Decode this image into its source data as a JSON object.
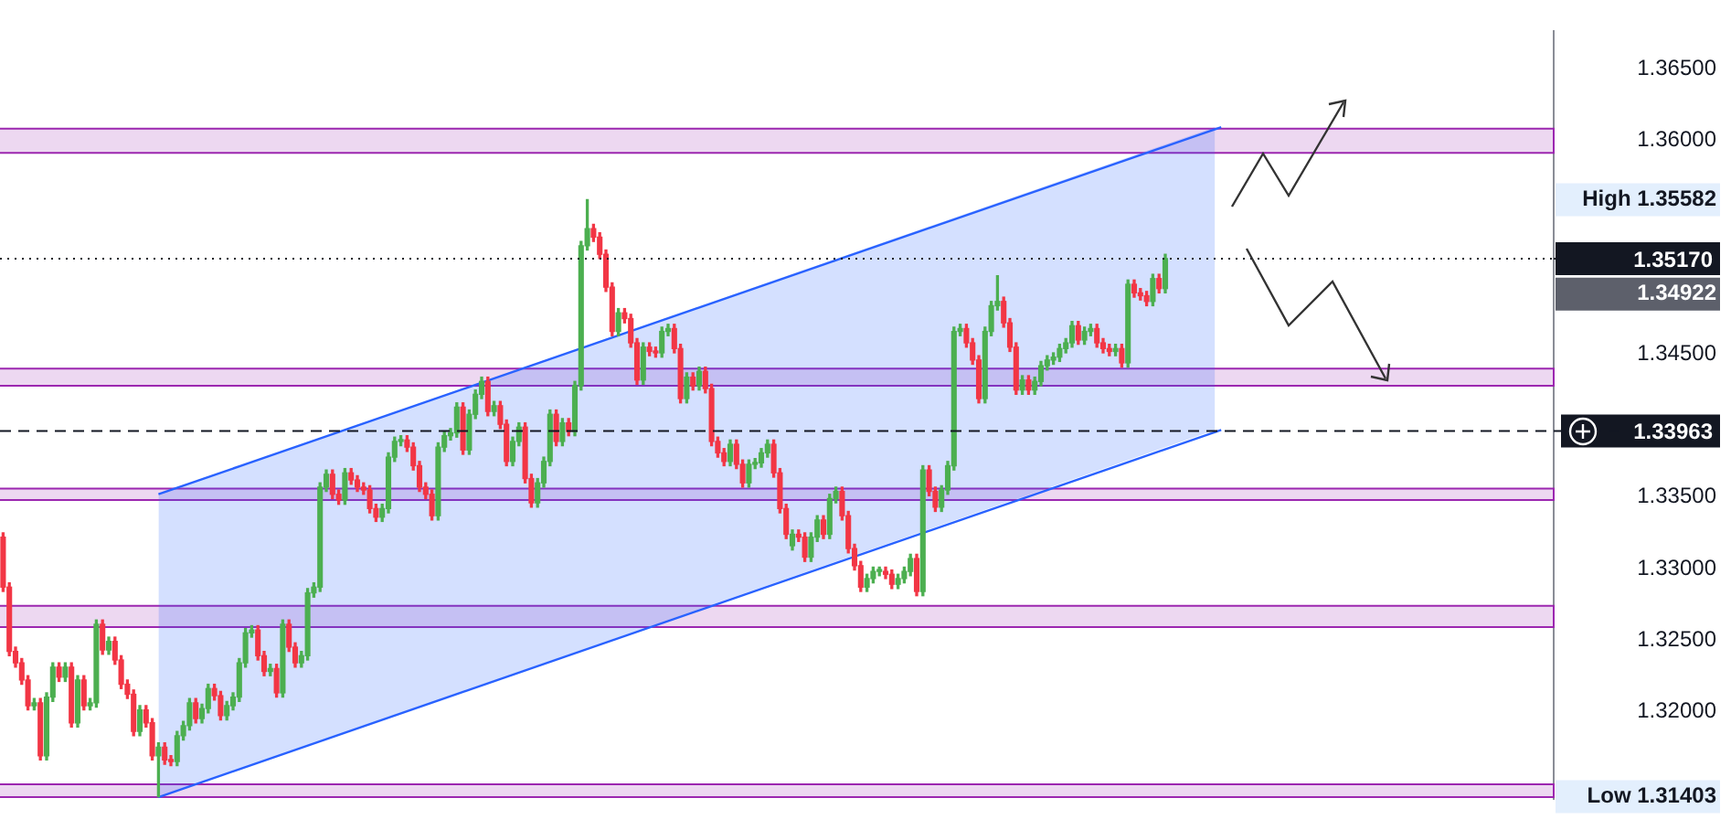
{
  "chart_data": {
    "type": "candlestick",
    "categories": [
      null,
      null,
      null,
      null,
      null,
      null,
      null,
      null,
      null,
      null,
      null,
      null,
      null,
      null,
      null,
      null,
      null,
      null,
      null,
      null,
      null,
      null,
      null,
      null,
      null,
      null,
      null,
      null,
      null,
      null,
      null,
      null,
      null,
      null,
      null,
      null,
      null,
      null,
      null,
      null,
      null,
      null,
      null,
      null,
      null,
      null,
      null,
      null,
      null,
      null,
      null,
      null,
      null,
      null,
      null,
      null,
      null,
      null,
      null,
      null,
      null,
      null,
      null,
      null,
      null,
      null,
      null,
      null,
      null,
      null,
      null,
      null,
      null,
      null,
      null,
      null,
      null,
      null,
      null,
      null,
      null,
      null,
      null,
      null,
      null,
      null,
      null,
      null,
      null,
      null,
      null,
      null,
      null,
      null,
      null,
      null,
      null,
      null,
      null,
      null,
      null,
      null,
      null,
      null,
      null,
      null,
      null,
      null,
      null,
      null,
      null,
      null,
      null,
      null,
      null,
      null,
      null,
      null,
      null,
      null,
      null,
      null,
      null,
      null,
      null,
      null,
      null,
      null,
      null,
      null,
      null,
      null,
      null,
      null,
      null,
      null,
      null,
      null,
      null,
      null,
      null,
      null,
      null,
      null,
      null,
      null,
      null,
      null,
      null,
      null,
      null,
      null,
      null,
      null,
      null,
      null,
      null,
      null,
      null,
      null,
      null,
      null,
      null,
      null,
      null,
      null,
      null,
      null,
      null,
      null,
      null,
      null,
      null,
      null,
      null,
      null,
      null,
      null,
      null,
      null,
      null,
      null,
      null,
      null,
      null,
      null,
      null,
      null,
      null,
      null,
      null,
      null,
      null,
      null,
      null,
      null,
      null,
      null,
      null,
      null,
      null,
      null,
      null,
      null,
      null,
      null,
      null,
      null,
      null,
      null,
      null,
      null,
      null,
      null,
      null,
      null,
      null,
      null,
      null,
      null,
      null,
      null,
      null,
      null,
      null,
      null,
      null,
      null,
      null,
      null,
      null,
      null,
      null,
      null,
      null,
      null,
      null,
      null,
      null,
      null,
      null,
      null,
      null,
      null,
      null,
      null,
      null,
      null,
      null,
      null
    ],
    "ohlc": [
      [
        1.3322,
        1.3325,
        1.3284,
        1.3287
      ],
      [
        1.3287,
        1.329,
        1.3239,
        1.3242
      ],
      [
        1.3242,
        1.3245,
        1.3231,
        1.3234
      ],
      [
        1.3234,
        1.3237,
        1.3219,
        1.3222
      ],
      [
        1.3222,
        1.3225,
        1.3201,
        1.3204
      ],
      [
        1.3204,
        1.3209,
        1.3201,
        1.3206
      ],
      [
        1.3206,
        1.3209,
        1.3166,
        1.3169
      ],
      [
        1.3169,
        1.3213,
        1.3166,
        1.321
      ],
      [
        1.321,
        1.3234,
        1.3207,
        1.3231
      ],
      [
        1.3231,
        1.3234,
        1.3221,
        1.3224
      ],
      [
        1.3224,
        1.3234,
        1.3221,
        1.3231
      ],
      [
        1.3231,
        1.3234,
        1.3189,
        1.3192
      ],
      [
        1.3192,
        1.3225,
        1.3189,
        1.3222
      ],
      [
        1.3222,
        1.3225,
        1.3201,
        1.3204
      ],
      [
        1.3204,
        1.3209,
        1.3201,
        1.3206
      ],
      [
        1.3206,
        1.3264,
        1.3203,
        1.3261
      ],
      [
        1.3261,
        1.3264,
        1.324,
        1.3243
      ],
      [
        1.3243,
        1.3252,
        1.324,
        1.3249
      ],
      [
        1.3249,
        1.3252,
        1.3233,
        1.3236
      ],
      [
        1.3236,
        1.3239,
        1.3216,
        1.3219
      ],
      [
        1.3219,
        1.3222,
        1.3209,
        1.3212
      ],
      [
        1.3212,
        1.3215,
        1.3183,
        1.3186
      ],
      [
        1.3186,
        1.3204,
        1.3183,
        1.3201
      ],
      [
        1.3201,
        1.3204,
        1.3189,
        1.3192
      ],
      [
        1.3192,
        1.3195,
        1.3166,
        1.3169
      ],
      [
        1.3169,
        1.3178,
        1.31403,
        1.3175
      ],
      [
        1.3175,
        1.3178,
        1.3163,
        1.3166
      ],
      [
        1.3166,
        1.3169,
        1.3162,
        1.3165
      ],
      [
        1.3165,
        1.3186,
        1.3162,
        1.3183
      ],
      [
        1.3183,
        1.3193,
        1.318,
        1.319
      ],
      [
        1.319,
        1.3209,
        1.3187,
        1.3206
      ],
      [
        1.3206,
        1.3209,
        1.3192,
        1.3195
      ],
      [
        1.3195,
        1.3205,
        1.3192,
        1.3202
      ],
      [
        1.3202,
        1.3219,
        1.3199,
        1.3216
      ],
      [
        1.3216,
        1.3219,
        1.3208,
        1.3211
      ],
      [
        1.3211,
        1.3214,
        1.3194,
        1.3197
      ],
      [
        1.3197,
        1.3207,
        1.3194,
        1.3204
      ],
      [
        1.3204,
        1.3213,
        1.3201,
        1.321
      ],
      [
        1.321,
        1.3237,
        1.3207,
        1.3234
      ],
      [
        1.3234,
        1.3258,
        1.3231,
        1.3255
      ],
      [
        1.3255,
        1.326,
        1.3252,
        1.3257
      ],
      [
        1.3257,
        1.326,
        1.3236,
        1.3239
      ],
      [
        1.3239,
        1.3242,
        1.3225,
        1.3228
      ],
      [
        1.3228,
        1.3233,
        1.3225,
        1.323
      ],
      [
        1.323,
        1.3233,
        1.321,
        1.3213
      ],
      [
        1.3213,
        1.3264,
        1.321,
        1.3261
      ],
      [
        1.3261,
        1.3264,
        1.3242,
        1.3245
      ],
      [
        1.3245,
        1.3248,
        1.3231,
        1.3234
      ],
      [
        1.3234,
        1.3242,
        1.3231,
        1.3239
      ],
      [
        1.3239,
        1.3286,
        1.3236,
        1.3283
      ],
      [
        1.3283,
        1.329,
        1.328,
        1.3287
      ],
      [
        1.3287,
        1.336,
        1.3284,
        1.3357
      ],
      [
        1.3357,
        1.3369,
        1.3354,
        1.3366
      ],
      [
        1.3366,
        1.3369,
        1.3349,
        1.3352
      ],
      [
        1.3352,
        1.3355,
        1.3345,
        1.3348
      ],
      [
        1.3348,
        1.337,
        1.3345,
        1.3367
      ],
      [
        1.3367,
        1.337,
        1.3359,
        1.3362
      ],
      [
        1.3362,
        1.3365,
        1.3354,
        1.3357
      ],
      [
        1.3357,
        1.336,
        1.3352,
        1.3355
      ],
      [
        1.3355,
        1.3358,
        1.3339,
        1.3342
      ],
      [
        1.3342,
        1.3345,
        1.3333,
        1.3336
      ],
      [
        1.3336,
        1.3345,
        1.3333,
        1.3342
      ],
      [
        1.3342,
        1.3381,
        1.3339,
        1.3378
      ],
      [
        1.3378,
        1.3392,
        1.3375,
        1.3389
      ],
      [
        1.3389,
        1.3393,
        1.3386,
        1.339
      ],
      [
        1.339,
        1.3393,
        1.3382,
        1.3385
      ],
      [
        1.3385,
        1.3388,
        1.3369,
        1.3372
      ],
      [
        1.3372,
        1.3375,
        1.3354,
        1.3357
      ],
      [
        1.3357,
        1.336,
        1.3349,
        1.3352
      ],
      [
        1.3352,
        1.3355,
        1.3334,
        1.3337
      ],
      [
        1.3337,
        1.3388,
        1.3334,
        1.3385
      ],
      [
        1.3385,
        1.3396,
        1.3382,
        1.3393
      ],
      [
        1.3393,
        1.3398,
        1.339,
        1.3395
      ],
      [
        1.3395,
        1.3416,
        1.3392,
        1.3413
      ],
      [
        1.3413,
        1.3416,
        1.338,
        1.3383
      ],
      [
        1.3383,
        1.3411,
        1.338,
        1.3408
      ],
      [
        1.3408,
        1.3425,
        1.3405,
        1.3422
      ],
      [
        1.3422,
        1.3434,
        1.3419,
        1.3431
      ],
      [
        1.3431,
        1.3434,
        1.3407,
        1.341
      ],
      [
        1.341,
        1.3417,
        1.3407,
        1.3414
      ],
      [
        1.3414,
        1.3417,
        1.3398,
        1.3401
      ],
      [
        1.3401,
        1.3404,
        1.3372,
        1.3375
      ],
      [
        1.3375,
        1.3392,
        1.3372,
        1.3389
      ],
      [
        1.3389,
        1.3402,
        1.3386,
        1.3399
      ],
      [
        1.3399,
        1.3402,
        1.336,
        1.3363
      ],
      [
        1.3363,
        1.3366,
        1.3343,
        1.3346
      ],
      [
        1.3346,
        1.3363,
        1.3343,
        1.336
      ],
      [
        1.336,
        1.3378,
        1.3357,
        1.3375
      ],
      [
        1.3375,
        1.3411,
        1.3372,
        1.3408
      ],
      [
        1.3408,
        1.3411,
        1.3386,
        1.3389
      ],
      [
        1.3389,
        1.3405,
        1.3386,
        1.3402
      ],
      [
        1.3402,
        1.3405,
        1.3393,
        1.3396
      ],
      [
        1.3396,
        1.3431,
        1.3393,
        1.3428
      ],
      [
        1.3428,
        1.3529,
        1.3425,
        1.3526
      ],
      [
        1.3526,
        1.35582,
        1.3523,
        1.3538
      ],
      [
        1.3538,
        1.3541,
        1.3529,
        1.3532
      ],
      [
        1.3532,
        1.3535,
        1.3517,
        1.352
      ],
      [
        1.352,
        1.3523,
        1.3494,
        1.3497
      ],
      [
        1.3497,
        1.35,
        1.3463,
        1.3466
      ],
      [
        1.3466,
        1.3482,
        1.3463,
        1.3479
      ],
      [
        1.3479,
        1.3482,
        1.3472,
        1.3475
      ],
      [
        1.3475,
        1.3478,
        1.3455,
        1.3458
      ],
      [
        1.3458,
        1.3461,
        1.3429,
        1.3432
      ],
      [
        1.3432,
        1.3458,
        1.3429,
        1.3455
      ],
      [
        1.3455,
        1.3458,
        1.3449,
        1.3452
      ],
      [
        1.3452,
        1.3455,
        1.3448,
        1.3451
      ],
      [
        1.3451,
        1.3469,
        1.3448,
        1.3466
      ],
      [
        1.3466,
        1.3471,
        1.3463,
        1.3468
      ],
      [
        1.3468,
        1.3471,
        1.3451,
        1.3454
      ],
      [
        1.3454,
        1.3457,
        1.3416,
        1.3419
      ],
      [
        1.3419,
        1.3437,
        1.3416,
        1.3434
      ],
      [
        1.3434,
        1.3437,
        1.3425,
        1.3428
      ],
      [
        1.3428,
        1.3441,
        1.3425,
        1.3438
      ],
      [
        1.3438,
        1.3441,
        1.3423,
        1.3426
      ],
      [
        1.3426,
        1.3429,
        1.3386,
        1.3389
      ],
      [
        1.3389,
        1.3392,
        1.3378,
        1.3381
      ],
      [
        1.3381,
        1.3384,
        1.3372,
        1.3375
      ],
      [
        1.3375,
        1.339,
        1.3372,
        1.3387
      ],
      [
        1.3387,
        1.339,
        1.337,
        1.3373
      ],
      [
        1.3373,
        1.3376,
        1.3357,
        1.336
      ],
      [
        1.336,
        1.3376,
        1.3357,
        1.3373
      ],
      [
        1.3373,
        1.3377,
        1.337,
        1.3374
      ],
      [
        1.3374,
        1.3384,
        1.3371,
        1.3381
      ],
      [
        1.3381,
        1.339,
        1.3378,
        1.3387
      ],
      [
        1.3387,
        1.339,
        1.3364,
        1.3367
      ],
      [
        1.3367,
        1.337,
        1.3339,
        1.3342
      ],
      [
        1.3342,
        1.3345,
        1.3321,
        1.3324
      ],
      [
        1.3316,
        1.3327,
        1.3313,
        1.3324
      ],
      [
        1.3324,
        1.3327,
        1.3319,
        1.3322
      ],
      [
        1.3322,
        1.3325,
        1.3305,
        1.3308
      ],
      [
        1.3308,
        1.3325,
        1.3305,
        1.3322
      ],
      [
        1.3322,
        1.3337,
        1.3319,
        1.3334
      ],
      [
        1.3334,
        1.3337,
        1.3321,
        1.3324
      ],
      [
        1.3324,
        1.3352,
        1.3321,
        1.3349
      ],
      [
        1.3349,
        1.3357,
        1.3346,
        1.3354
      ],
      [
        1.3354,
        1.3357,
        1.3334,
        1.3337
      ],
      [
        1.3337,
        1.334,
        1.3311,
        1.3314
      ],
      [
        1.3314,
        1.3317,
        1.3299,
        1.3302
      ],
      [
        1.3302,
        1.3305,
        1.3284,
        1.3287
      ],
      [
        1.3287,
        1.3296,
        1.3284,
        1.3293
      ],
      [
        1.3293,
        1.3301,
        1.329,
        1.3298
      ],
      [
        1.3298,
        1.3301,
        1.3295,
        1.3298
      ],
      [
        1.3298,
        1.3301,
        1.3293,
        1.3296
      ],
      [
        1.3296,
        1.3299,
        1.3286,
        1.3289
      ],
      [
        1.3289,
        1.3296,
        1.3286,
        1.3293
      ],
      [
        1.3293,
        1.3301,
        1.329,
        1.3298
      ],
      [
        1.3298,
        1.331,
        1.3295,
        1.3307
      ],
      [
        1.3307,
        1.331,
        1.3281,
        1.3284
      ],
      [
        1.3284,
        1.3372,
        1.3281,
        1.3369
      ],
      [
        1.3369,
        1.3372,
        1.3351,
        1.3354
      ],
      [
        1.3354,
        1.3357,
        1.334,
        1.3343
      ],
      [
        1.3343,
        1.3358,
        1.334,
        1.3355
      ],
      [
        1.3355,
        1.3375,
        1.3352,
        1.3372
      ],
      [
        1.3372,
        1.3469,
        1.3369,
        1.3466
      ],
      [
        1.3466,
        1.3471,
        1.3463,
        1.3468
      ],
      [
        1.3468,
        1.3471,
        1.3455,
        1.3458
      ],
      [
        1.3458,
        1.3461,
        1.3443,
        1.3446
      ],
      [
        1.3446,
        1.3449,
        1.3416,
        1.3419
      ],
      [
        1.3419,
        1.3469,
        1.3416,
        1.3466
      ],
      [
        1.3466,
        1.3487,
        1.3463,
        1.3484
      ],
      [
        1.3484,
        1.3505,
        1.3481,
        1.3487
      ],
      [
        1.3487,
        1.349,
        1.3469,
        1.3472
      ],
      [
        1.3472,
        1.3475,
        1.3452,
        1.3455
      ],
      [
        1.3455,
        1.3458,
        1.3422,
        1.3425
      ],
      [
        1.3425,
        1.3435,
        1.3422,
        1.3432
      ],
      [
        1.3432,
        1.3435,
        1.3422,
        1.3425
      ],
      [
        1.3425,
        1.3434,
        1.3422,
        1.3431
      ],
      [
        1.3431,
        1.3445,
        1.3428,
        1.3442
      ],
      [
        1.3442,
        1.3449,
        1.3439,
        1.3446
      ],
      [
        1.3446,
        1.3451,
        1.3443,
        1.3448
      ],
      [
        1.3448,
        1.3457,
        1.3445,
        1.3454
      ],
      [
        1.3454,
        1.3461,
        1.3451,
        1.3458
      ],
      [
        1.3458,
        1.3473,
        1.3455,
        1.347
      ],
      [
        1.347,
        1.3473,
        1.3457,
        1.346
      ],
      [
        1.346,
        1.3469,
        1.3457,
        1.3466
      ],
      [
        1.3466,
        1.3471,
        1.3463,
        1.3468
      ],
      [
        1.3468,
        1.3471,
        1.3455,
        1.3458
      ],
      [
        1.3458,
        1.3461,
        1.3451,
        1.3454
      ],
      [
        1.3454,
        1.3457,
        1.3449,
        1.3452
      ],
      [
        1.3452,
        1.3457,
        1.3449,
        1.3454
      ],
      [
        1.3454,
        1.3457,
        1.3441,
        1.3444
      ],
      [
        1.3444,
        1.3502,
        1.3441,
        1.3499
      ],
      [
        1.3499,
        1.3502,
        1.349,
        1.3493
      ],
      [
        1.3493,
        1.3496,
        1.3488,
        1.3491
      ],
      [
        1.3491,
        1.3494,
        1.3484,
        1.3487
      ],
      [
        1.3487,
        1.3506,
        1.3484,
        1.3503
      ],
      [
        1.3503,
        1.3506,
        1.3493,
        1.3496
      ],
      [
        1.3496,
        1.352,
        1.3493,
        1.3517
      ],
      null,
      null,
      null,
      null,
      null,
      null,
      null,
      null,
      null,
      null,
      null,
      null,
      null,
      null,
      null,
      null,
      null,
      null,
      null,
      null,
      null,
      null,
      null,
      null,
      null,
      null,
      null,
      null,
      null,
      null,
      null,
      null,
      null,
      null,
      null,
      null,
      null,
      null,
      null,
      null,
      null,
      null,
      null,
      null,
      null,
      null,
      null,
      null,
      null,
      null,
      null,
      null,
      null,
      null,
      null,
      null,
      null,
      null,
      null,
      null,
      null,
      null
    ],
    "series": [
      {
        "type": "line",
        "color": "#2962ff",
        "values": [
          null,
          null,
          null,
          null,
          null,
          null,
          null,
          null,
          null,
          null,
          null,
          null,
          null,
          null,
          null,
          null,
          null,
          null,
          null,
          null,
          null,
          null,
          null,
          null,
          null,
          1.3352,
          null,
          null,
          null,
          null,
          null,
          null,
          null,
          null,
          null,
          null,
          null,
          null,
          null,
          null,
          null,
          null,
          null,
          null,
          null,
          null,
          null,
          null,
          null,
          null,
          null,
          null,
          null,
          null,
          null,
          null,
          null,
          null,
          null,
          null,
          null,
          null,
          null,
          null,
          null,
          null,
          null,
          null,
          null,
          null,
          null,
          null,
          null,
          null,
          null,
          null,
          null,
          null,
          null,
          null,
          null,
          null,
          null,
          null,
          null,
          null,
          null,
          null,
          null,
          null,
          null,
          null,
          null,
          null,
          null,
          null,
          null,
          null,
          null,
          null,
          null,
          null,
          null,
          null,
          null,
          null,
          null,
          null,
          null,
          null,
          null,
          null,
          null,
          null,
          null,
          null,
          null,
          null,
          null,
          null,
          null,
          null,
          null,
          null,
          null,
          null,
          null,
          null,
          null,
          null,
          null,
          null,
          null,
          null,
          null,
          null,
          null,
          null,
          null,
          null,
          null,
          null,
          null,
          null,
          null,
          null,
          null,
          null,
          null,
          null,
          null,
          null,
          null,
          null,
          null,
          null,
          null,
          null,
          null,
          null,
          null,
          null,
          null,
          null,
          null,
          null,
          null,
          null,
          null,
          null,
          null,
          null,
          null,
          null,
          null,
          null,
          null,
          null,
          null,
          null,
          null,
          null,
          null,
          null,
          null,
          null,
          null,
          null,
          null,
          null,
          null,
          null,
          null,
          null,
          null,
          null,
          1.3609,
          null,
          null,
          null,
          null,
          null,
          null,
          null,
          null,
          null,
          null,
          null,
          null,
          null,
          null,
          null,
          null,
          null,
          null,
          null,
          null,
          null,
          null,
          null,
          null,
          null,
          null,
          null,
          null,
          null,
          null,
          null,
          null,
          null,
          null,
          null,
          null,
          null,
          null,
          null,
          null,
          null,
          null,
          null,
          null,
          null,
          null,
          null,
          null,
          null,
          null,
          null,
          null,
          null
        ],
        "upper": [
          null,
          null,
          null,
          null,
          null,
          null,
          null,
          null,
          null,
          null,
          null,
          null,
          null,
          null,
          null,
          null,
          null,
          null,
          null,
          null,
          null,
          null,
          null,
          null,
          null,
          1.3352,
          null,
          null,
          null,
          null,
          null,
          null,
          null,
          null,
          null,
          null,
          null,
          null,
          null,
          null,
          null,
          null,
          null,
          null,
          null,
          null,
          null,
          null,
          null,
          null,
          null,
          null,
          null,
          null,
          null,
          null,
          null,
          null,
          null,
          null,
          null,
          null,
          null,
          null,
          null,
          null,
          null,
          null,
          null,
          null,
          null,
          null,
          null,
          null,
          null,
          null,
          null,
          null,
          null,
          null,
          null,
          null,
          null,
          null,
          null,
          null,
          null,
          null,
          null,
          null,
          null,
          null,
          null,
          null,
          null,
          null,
          null,
          null,
          null,
          null,
          null,
          null,
          null,
          null,
          null,
          null,
          null,
          null,
          null,
          null,
          null,
          null,
          null,
          null,
          null,
          null,
          null,
          null,
          null,
          null,
          null,
          null,
          null,
          null,
          null,
          null,
          null,
          null,
          null,
          null,
          null,
          null,
          null,
          null,
          null,
          null,
          null,
          null,
          null,
          null,
          null,
          null,
          null,
          null,
          null,
          null,
          null,
          null,
          null,
          null,
          null,
          null,
          null,
          null,
          null,
          null,
          null,
          null,
          null,
          null,
          null,
          null,
          null,
          null,
          null,
          null,
          null,
          null,
          null,
          null,
          null,
          null,
          null,
          null,
          null,
          null,
          null,
          null,
          null,
          null,
          null,
          null,
          null,
          null,
          null,
          null,
          null,
          null,
          null,
          null,
          null,
          null,
          null,
          null,
          null,
          1.3609,
          null,
          null,
          null,
          null,
          null,
          null,
          null,
          null,
          null,
          null,
          null,
          null,
          null,
          null,
          null,
          null,
          null,
          null,
          null,
          null,
          null,
          null,
          null,
          null,
          null,
          null,
          null,
          null,
          null,
          null,
          null,
          null,
          null,
          null,
          null,
          null,
          null,
          null,
          null,
          null,
          null,
          null,
          null,
          null,
          null,
          null,
          null,
          null,
          null,
          null,
          null,
          null,
          null,
          null
        ],
        "lower": [
          null,
          null,
          null,
          null,
          null,
          null,
          null,
          null,
          null,
          null,
          null,
          null,
          null,
          null,
          null,
          null,
          null,
          null,
          null,
          null,
          null,
          null,
          null,
          null,
          null,
          1.314,
          null,
          null,
          null,
          null,
          null,
          null,
          null,
          null,
          null,
          null,
          null,
          null,
          null,
          null,
          null,
          null,
          null,
          null,
          null,
          null,
          null,
          null,
          null,
          null,
          null,
          null,
          null,
          null,
          null,
          null,
          null,
          null,
          null,
          null,
          null,
          null,
          null,
          null,
          null,
          null,
          null,
          null,
          null,
          null,
          null,
          null,
          null,
          null,
          null,
          null,
          null,
          null,
          null,
          null,
          null,
          null,
          null,
          null,
          null,
          null,
          null,
          null,
          null,
          null,
          null,
          null,
          null,
          null,
          null,
          null,
          null,
          null,
          null,
          null,
          null,
          null,
          null,
          null,
          null,
          null,
          null,
          null,
          null,
          null,
          null,
          null,
          null,
          null,
          null,
          null,
          null,
          null,
          null,
          null,
          null,
          null,
          null,
          null,
          null,
          null,
          null,
          null,
          null,
          null,
          null,
          null,
          null,
          null,
          null,
          null,
          null,
          null,
          null,
          null,
          null,
          null,
          null,
          null,
          null,
          null,
          null,
          null,
          null,
          null,
          null,
          null,
          null,
          null,
          null,
          null,
          null,
          null,
          null,
          null,
          null,
          null,
          null,
          null,
          null,
          null,
          null,
          null,
          null,
          null,
          null,
          null,
          null,
          null,
          null,
          null,
          null,
          null,
          null,
          null,
          null,
          null,
          null,
          null,
          null,
          null,
          null,
          null,
          null,
          null,
          null,
          null,
          null,
          null,
          null,
          1.3397,
          null,
          null,
          null,
          null,
          null,
          null,
          null,
          null,
          null,
          null,
          null,
          null,
          null,
          null,
          null,
          null,
          null,
          null,
          null,
          null,
          null,
          null,
          null,
          null,
          null,
          null,
          null,
          null,
          null,
          null,
          null,
          null,
          null,
          null,
          null,
          null,
          null,
          null,
          null,
          null,
          null,
          null,
          null,
          null,
          null,
          null,
          null,
          null,
          null,
          null,
          null,
          null,
          null,
          null
        ]
      },
      {
        "type": "line",
        "color": "#2962ff",
        "values": [
          null,
          null,
          null,
          null,
          null,
          null,
          null,
          null,
          null,
          null,
          null,
          null,
          null,
          null,
          null,
          null,
          null,
          null,
          null,
          null,
          null,
          null,
          null,
          null,
          null,
          1.314,
          null,
          null,
          null,
          null,
          null,
          null,
          null,
          null,
          null,
          null,
          null,
          null,
          null,
          null,
          null,
          null,
          null,
          null,
          null,
          null,
          null,
          null,
          null,
          null,
          null,
          null,
          null,
          null,
          null,
          null,
          null,
          null,
          null,
          null,
          null,
          null,
          null,
          null,
          null,
          null,
          null,
          null,
          null,
          null,
          null,
          null,
          null,
          null,
          null,
          null,
          null,
          null,
          null,
          null,
          null,
          null,
          null,
          null,
          null,
          null,
          null,
          null,
          null,
          null,
          null,
          null,
          null,
          null,
          null,
          null,
          null,
          null,
          null,
          null,
          null,
          null,
          null,
          null,
          null,
          null,
          null,
          null,
          null,
          null,
          null,
          null,
          null,
          null,
          null,
          null,
          null,
          null,
          null,
          null,
          null,
          null,
          null,
          null,
          null,
          null,
          null,
          null,
          null,
          null,
          null,
          null,
          null,
          null,
          null,
          null,
          null,
          null,
          null,
          null,
          null,
          null,
          null,
          null,
          null,
          null,
          null,
          null,
          null,
          null,
          null,
          null,
          null,
          null,
          null,
          null,
          null,
          null,
          null,
          null,
          null,
          null,
          null,
          null,
          null,
          null,
          null,
          null,
          null,
          null,
          null,
          null,
          null,
          null,
          null,
          null,
          null,
          null,
          null,
          null,
          null,
          null,
          null,
          null,
          null,
          null,
          null,
          null,
          null,
          null,
          null,
          null,
          null,
          null,
          null,
          null,
          1.3397,
          null,
          null,
          null,
          null,
          null,
          null,
          null,
          null,
          null,
          null,
          null,
          null,
          null,
          null,
          null,
          null,
          null,
          null,
          null,
          null,
          null,
          null,
          null,
          null,
          null,
          null,
          null,
          null,
          null,
          null,
          null,
          null,
          null,
          null,
          null,
          null,
          null,
          null,
          null,
          null,
          null,
          null,
          null,
          null,
          null,
          null,
          null,
          null,
          null,
          null,
          null,
          null,
          null
        ]
      }
    ],
    "ylim": [
      1.3139,
      1.3676
    ],
    "yticks": [
      {
        "value": 1.31403,
        "label": "Low 1.31403"
      },
      {
        "value": 1.32,
        "label": "1.32000"
      },
      {
        "value": 1.325,
        "label": "1.32500"
      },
      {
        "value": 1.33,
        "label": "1.33000"
      },
      {
        "value": 1.335,
        "label": "1.33500"
      },
      {
        "value": 1.345,
        "label": "1.34500"
      },
      {
        "value": 1.34922,
        "label": "1.34922"
      },
      {
        "value": 1.35582,
        "label": "High 1.35582"
      },
      {
        "value": 1.36,
        "label": "1.36000"
      },
      {
        "value": 1.365,
        "label": "1.36500"
      }
    ],
    "bands": [
      {
        "axis": "y",
        "from": 1.3591,
        "to": 1.3608,
        "color": "#9c27b0"
      },
      {
        "axis": "y",
        "from": 1.3428,
        "to": 1.344,
        "color": "#9c27b0"
      },
      {
        "axis": "y",
        "from": 1.3348,
        "to": 1.3356,
        "color": "#9c27b0"
      },
      {
        "axis": "y",
        "from": 1.3259,
        "to": 1.3274,
        "color": "#9c27b0"
      },
      {
        "axis": "y",
        "from": 1.314,
        "to": 1.3149,
        "color": "#9c27b0"
      }
    ],
    "ref_lines": [
      {
        "axis": "y",
        "value": 1.3517,
        "label": "1.35170",
        "color": "#131722",
        "line_style": "dotted"
      },
      {
        "axis": "y",
        "value": 1.33963,
        "label": "1.33963",
        "color": "#131722",
        "line_style": "dashed"
      }
    ],
    "grid": false,
    "legend": false
  }
}
